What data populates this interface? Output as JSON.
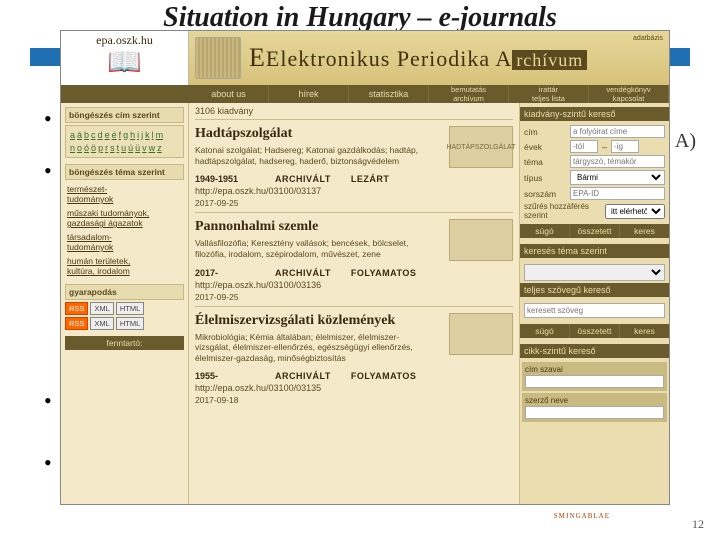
{
  "slide": {
    "title": "Situation in Hungary – e-journals",
    "epa_hint": "A)",
    "page_number": "12",
    "footer_micro": "SMJNGABLAE"
  },
  "header": {
    "url": "epa.oszk.hu",
    "brand_main": "Elektronikus Periodika A",
    "brand_tail": "rchívum",
    "brand_sub": "adatbázis"
  },
  "topnav": [
    "about us",
    "hírek",
    "statisztika",
    "bemutatás\narchívum",
    "irattár\nteljes lista",
    "vendégkönyv\nkapcsolat"
  ],
  "left": {
    "browse_title_head": "böngészés cím szerint",
    "alpha1": [
      "a",
      "á",
      "b",
      "c",
      "d",
      "e",
      "é",
      "f",
      "g",
      "h",
      "i",
      "j",
      "k",
      "l",
      "m"
    ],
    "alpha2": [
      "n",
      "o",
      "ó",
      "ö",
      "p",
      "r",
      "s",
      "t",
      "u",
      "ú",
      "ü",
      "v",
      "w",
      "z"
    ],
    "browse_theme_head": "böngészés téma szerint",
    "themes": [
      "természet-\ntudományok",
      "műszaki tudományok,\ngazdasági ágazatok",
      "társadalom-\ntudományok",
      "humán területek,\nkultúra, irodalom"
    ],
    "growth_head": "gyarapodás",
    "feed_labels": {
      "rss": "RSS",
      "xml": "XML",
      "html": "HTML"
    },
    "fenntarto": "fenntartó:"
  },
  "main": {
    "count": "3106 kiadvány",
    "entries": [
      {
        "title": "Hadtápszolgálat",
        "desc": "Katonai szolgálat; Hadsereg; Katonai gazdálkodás; hadtáp, hadtápszolgálat, hadsereg, haderő, biztonságvédelem",
        "years": "1949-1951",
        "status1": "ARCHIVÁLT",
        "status2": "LEZÁRT",
        "url": "http://epa.oszk.hu/03100/03137",
        "date": "2017-09-25",
        "thumb": "HADTÁPSZOLGÁLAT"
      },
      {
        "title": "Pannonhalmi szemle",
        "desc": "Vallásfilozófia; Keresztény vallások; bencések, bölcselet, filozófia, irodalom, szépirodalom, művészet, zene",
        "years": "2017-",
        "status1": "ARCHIVÁLT",
        "status2": "FOLYAMATOS",
        "url": "http://epa.oszk.hu/03100/03136",
        "date": "2017-09-25",
        "thumb": ""
      },
      {
        "title": "Élelmiszervizsgálati közlemények",
        "desc": "Mikrobiológia; Kémia általában; élelmiszer, élelmiszer-vizsgálat, élelmiszer-ellenőrzés, egészségügyi ellenőrzés, élelmiszer-gazdaság, minőségbiztosítás",
        "years": "1955-",
        "status1": "ARCHIVÁLT",
        "status2": "FOLYAMATOS",
        "url": "http://epa.oszk.hu/03100/03135",
        "date": "2017-09-18",
        "thumb": ""
      }
    ]
  },
  "right": {
    "head1": "kiadvány-szintű kereső",
    "fields": {
      "cim_label": "cím",
      "cim_ph": "a folyóirat címe",
      "evek_label": "évek",
      "ev_from_ph": "-tól",
      "ev_to_ph": "-ig",
      "tema_label": "téma",
      "tema_ph": "tárgyszó, témakör",
      "tipus_label": "típus",
      "tipus_val": "Bármi",
      "sorszam_label": "sorszám",
      "sorszam_ph": "EPA-ID"
    },
    "filter_label": "szűrés hozzáférés szerint",
    "filter_val": "itt elérhető archivált",
    "btn_sugo": "súgó",
    "btn_ossze": "összetett",
    "btn_keres": "keres",
    "head2": "keresés téma szerint",
    "head3": "teljes szövegű kereső",
    "full_ph": "keresett szöveg",
    "head4": "cikk-szintű kereső",
    "cikk_cim_label": "cím szavai",
    "cikk_cim_ph": "",
    "cikk_szerzo_label": "szerző neve",
    "cikk_szerzo_ph": ""
  }
}
